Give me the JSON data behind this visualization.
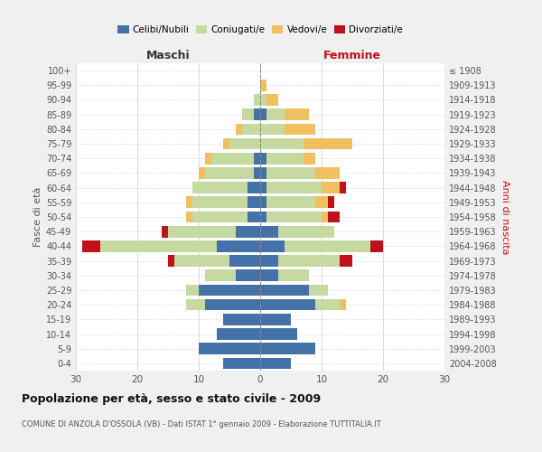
{
  "age_groups": [
    "0-4",
    "5-9",
    "10-14",
    "15-19",
    "20-24",
    "25-29",
    "30-34",
    "35-39",
    "40-44",
    "45-49",
    "50-54",
    "55-59",
    "60-64",
    "65-69",
    "70-74",
    "75-79",
    "80-84",
    "85-89",
    "90-94",
    "95-99",
    "100+"
  ],
  "birth_years": [
    "2004-2008",
    "1999-2003",
    "1994-1998",
    "1989-1993",
    "1984-1988",
    "1979-1983",
    "1974-1978",
    "1969-1973",
    "1964-1968",
    "1959-1963",
    "1954-1958",
    "1949-1953",
    "1944-1948",
    "1939-1943",
    "1934-1938",
    "1929-1933",
    "1924-1928",
    "1919-1923",
    "1914-1918",
    "1909-1913",
    "≤ 1908"
  ],
  "males": {
    "celibi": [
      6,
      10,
      7,
      6,
      9,
      10,
      4,
      5,
      7,
      4,
      2,
      2,
      2,
      1,
      1,
      0,
      0,
      1,
      0,
      0,
      0
    ],
    "coniugati": [
      0,
      0,
      0,
      0,
      3,
      2,
      5,
      9,
      19,
      11,
      9,
      9,
      9,
      8,
      7,
      5,
      3,
      2,
      1,
      0,
      0
    ],
    "vedovi": [
      0,
      0,
      0,
      0,
      0,
      0,
      0,
      0,
      0,
      0,
      1,
      1,
      0,
      1,
      1,
      1,
      1,
      0,
      0,
      0,
      0
    ],
    "divorziati": [
      0,
      0,
      0,
      0,
      0,
      0,
      0,
      1,
      3,
      1,
      0,
      0,
      0,
      0,
      0,
      0,
      0,
      0,
      0,
      0,
      0
    ]
  },
  "females": {
    "nubili": [
      5,
      9,
      6,
      5,
      9,
      8,
      3,
      3,
      4,
      3,
      1,
      1,
      1,
      1,
      1,
      0,
      0,
      1,
      0,
      0,
      0
    ],
    "coniugate": [
      0,
      0,
      0,
      0,
      4,
      3,
      5,
      10,
      14,
      9,
      9,
      8,
      9,
      8,
      6,
      7,
      4,
      3,
      1,
      0,
      0
    ],
    "vedove": [
      0,
      0,
      0,
      0,
      1,
      0,
      0,
      0,
      0,
      0,
      1,
      2,
      3,
      4,
      2,
      8,
      5,
      4,
      2,
      1,
      0
    ],
    "divorziate": [
      0,
      0,
      0,
      0,
      0,
      0,
      0,
      2,
      2,
      0,
      2,
      1,
      1,
      0,
      0,
      0,
      0,
      0,
      0,
      0,
      0
    ]
  },
  "colors": {
    "celibi": "#4472a8",
    "coniugati": "#c5d9a0",
    "vedovi": "#f0c060",
    "divorziati": "#c0101a"
  },
  "title": "Popolazione per età, sesso e stato civile - 2009",
  "subtitle": "COMUNE DI ANZOLA D'OSSOLA (VB) - Dati ISTAT 1° gennaio 2009 - Elaborazione TUTTITALIA.IT",
  "xlabel_left": "Maschi",
  "xlabel_right": "Femmine",
  "ylabel_left": "Fasce di età",
  "ylabel_right": "Anni di nascita",
  "xlim": 30,
  "bg_color": "#f0f0f0",
  "plot_bg": "#ffffff"
}
